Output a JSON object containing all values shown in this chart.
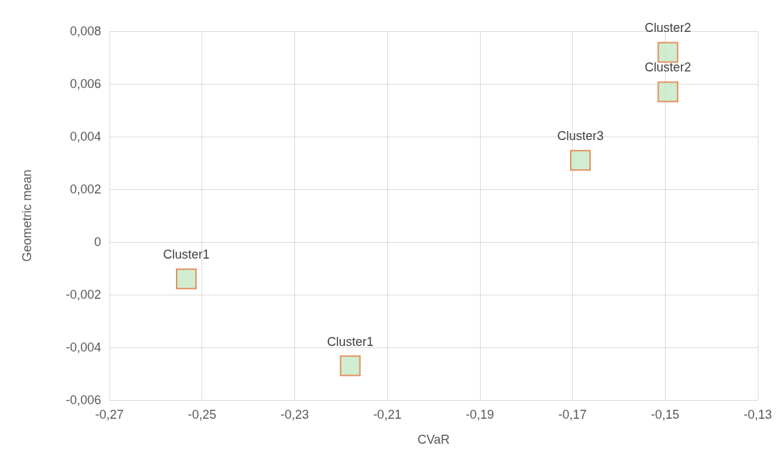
{
  "chart_data": {
    "type": "scatter",
    "xlabel": "CVaR",
    "ylabel": "Geometric mean",
    "x": [
      -0.2534,
      -0.218,
      -0.1683,
      -0.1494,
      -0.1494
    ],
    "values": [
      -0.0014,
      -0.0047,
      0.0031,
      0.0072,
      0.0057
    ],
    "color": "#c6e9c6",
    "marker": "square",
    "grid": true,
    "xlim": [
      -0.27,
      -0.13
    ],
    "xticks": [
      {
        "value": -0.27,
        "label": "-0,27"
      },
      {
        "value": -0.25,
        "label": "-0,25"
      },
      {
        "value": -0.23,
        "label": "-0,23"
      },
      {
        "value": -0.21,
        "label": "-0,21"
      },
      {
        "value": -0.19,
        "label": "-0,19"
      },
      {
        "value": -0.17,
        "label": "-0,17"
      },
      {
        "value": -0.15,
        "label": "-0,15"
      },
      {
        "value": -0.13,
        "label": "-0,13"
      }
    ],
    "ylim": [
      -0.006,
      0.008
    ],
    "yticks": [
      {
        "value": -0.006,
        "label": "-0,006"
      },
      {
        "value": -0.004,
        "label": "-0,004"
      },
      {
        "value": -0.002,
        "label": "-0,002"
      },
      0,
      {
        "value": 0.002,
        "label": "0,002"
      },
      {
        "value": 0.004,
        "label": "0,004"
      },
      {
        "value": 0.006,
        "label": "0,006"
      },
      {
        "value": 0.008,
        "label": "0,008"
      }
    ],
    "annotations": [
      {
        "text": "Cluster1",
        "x": -0.2534,
        "y": -0.0014
      },
      {
        "text": "Cluster1",
        "x": -0.218,
        "y": -0.0047
      },
      {
        "text": "Cluster3",
        "x": -0.1683,
        "y": 0.0031
      },
      {
        "text": "Cluster2",
        "x": -0.1494,
        "y": 0.0072
      },
      {
        "text": "Cluster2",
        "x": -0.1494,
        "y": 0.0057
      }
    ]
  }
}
